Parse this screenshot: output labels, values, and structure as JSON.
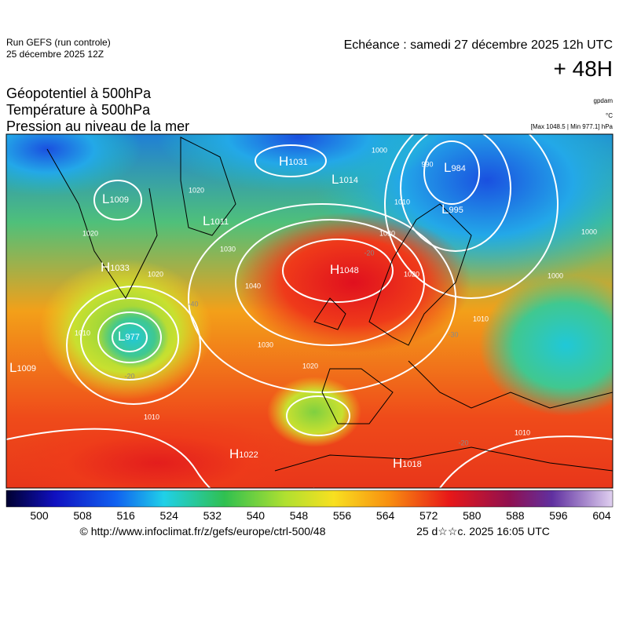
{
  "header": {
    "run": "Run GEFS (run controle)",
    "run_date": "25 décembre 2025 12Z",
    "valid": "Echéance : samedi 27 décembre 2025 12h UTC",
    "lead": "+ 48H",
    "fields": [
      "Géopotentiel à 500hPa",
      "Température à 500hPa",
      "Pression au niveau de la mer"
    ],
    "unit_geo": "gpdam",
    "unit_temp": "°C",
    "extremes": "[Max 1048.5 | Min 977.1] hPa"
  },
  "map": {
    "centers": [
      {
        "symbol": "L",
        "value": 1009
      },
      {
        "symbol": "H",
        "value": 1031
      },
      {
        "symbol": "L",
        "value": 1014
      },
      {
        "symbol": "L",
        "value": 984
      },
      {
        "symbol": "L",
        "value": 1011
      },
      {
        "symbol": "L",
        "value": 995
      },
      {
        "symbol": "H",
        "value": 1033
      },
      {
        "symbol": "H",
        "value": 1048
      },
      {
        "symbol": "L",
        "value": 977
      },
      {
        "symbol": "L",
        "value": 1009
      },
      {
        "symbol": "H",
        "value": 1022
      },
      {
        "symbol": "H",
        "value": 1018
      }
    ],
    "isobar_labels": [
      1020,
      1020,
      1020,
      1010,
      1030,
      1040,
      1030,
      1020,
      1010,
      1000,
      990,
      1010,
      1030,
      1020,
      1000,
      1000,
      1010,
      1010
    ],
    "temperature_labels": [
      -20,
      -40,
      -30,
      -20,
      -20
    ]
  },
  "colorbar": {
    "labels": [
      500,
      508,
      516,
      524,
      532,
      540,
      548,
      556,
      564,
      572,
      580,
      588,
      596,
      604
    ]
  },
  "footer": {
    "url": "© http://www.infoclimat.fr/z/gefs/europe/ctrl-500/48",
    "generated": "25 d☆☆c. 2025 16:05 UTC"
  }
}
